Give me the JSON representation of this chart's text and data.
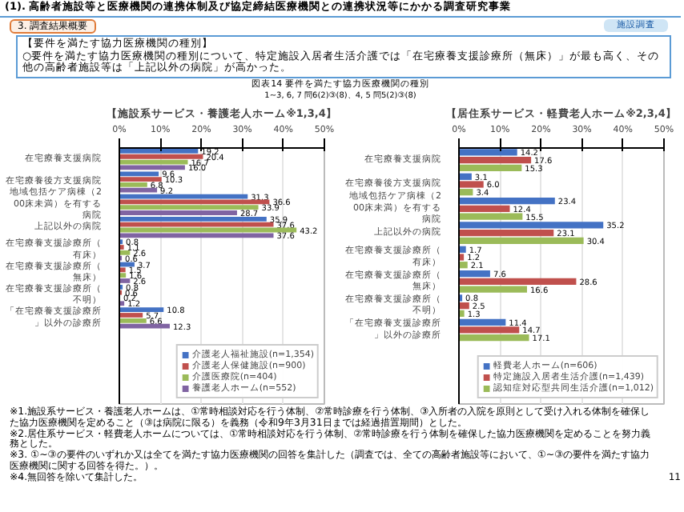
{
  "chart_data": [
    {
      "type": "bar",
      "orientation": "horizontal",
      "title": "【施設系サービス・養護老人ホーム※1,3,4】",
      "annotations": [
        "(1). 高齢者施設等と医療機関の連携体制及び協定締結医療機関との連携状況等にかかる調査研究事業",
        "施設調査",
        "3. 調査結果概要",
        "【要件を満たす協力医療機関の種別】",
        "○要件を満たす協力医療機関の種別について、特定施設入居者生活介護では「在宅療養支援診療所（無床）」が最も高く、その他の高齢者施設等は「上記以外の病院」が高かった。",
        "図表14 要件を満たす協力医療機関の種別",
        "1~3, 6, 7 問6(2)③(8)、4, 5 問5(2)③(8)",
        "※1.施設系サービス・養護老人ホームは、①常時相談対応を行う体制、②常時診療を行う体制、③入所者の入院を原則として受け入れる体制を確保した協力医療機関を定めること（③は病院に限る）を義務（令和9年3月31日までは経過措置期間）とした。",
        "※2.居住系サービス・軽費老人ホームについては、①常時相談対応を行う体制、②常時診療を行う体制を確保した協力医療機関を定めることを努力義務とした。",
        "※3. ①~③の要件のいずれか又は全てを満たす協力医療機関の回答を集計した（調査では、全ての高齢者施設等において、①~③の要件を満たす協力医療機関に関する回答を得た。）。",
        "※4.無回答を除いて集計した。",
        "11"
      ],
      "categories": [
        "在宅療養支援病院",
        "在宅療養後方支援病院",
        "地域包括ケア病棟（200床未満）を有する病院",
        "上記以外の病院",
        "在宅療養支援診療所（有床）",
        "在宅療養支援診療所（無床）",
        "在宅療養支援診療所（不明）",
        "「在宅療養支援診療所」以外の診療所"
      ],
      "series": [
        {
          "name": "介護老人福祉施設(n=1,354)",
          "color": "#4472c4",
          "values": [
            19.2,
            9.6,
            31.3,
            35.9,
            0.8,
            3.7,
            0.8,
            10.8
          ],
          "value_labels": [
            "19.2",
            "9.6",
            "31.3",
            "35.9",
            "0.8",
            "3.7",
            "0.8",
            "10.8"
          ]
        },
        {
          "name": "介護老人保健施設(n=900)",
          "color": "#c0504d",
          "values": [
            20.4,
            10.3,
            36.6,
            37.6,
            1.1,
            1.5,
            0.6,
            5.7
          ],
          "value_labels": [
            "20.4",
            "10.3",
            "36.6",
            "37.6",
            "1.1",
            "1.5",
            "0.6",
            "5.7"
          ]
        },
        {
          "name": "介護医療院(n=404)",
          "color": "#9bbb59",
          "values": [
            16.7,
            6.8,
            33.9,
            43.2,
            2.6,
            1.6,
            0.2,
            6.6
          ],
          "value_labels": [
            "16.7",
            "6.8",
            "33.9",
            "43.2",
            "2.6",
            "1.6",
            "0.2",
            "6.6"
          ]
        },
        {
          "name": "養護老人ホーム(n=552)",
          "color": "#8064a2",
          "values": [
            16.0,
            9.2,
            28.7,
            37.6,
            0.6,
            2.6,
            1.2,
            12.3
          ],
          "value_labels": [
            "16.0",
            "9.2",
            "28.7",
            "37.6",
            "0.6",
            "2.6",
            "1.2",
            "12.3"
          ]
        }
      ],
      "xlim": [
        0,
        50
      ],
      "xticks": [
        {
          "value": 0,
          "label": "0%"
        },
        {
          "value": 10,
          "label": "10%"
        },
        {
          "value": 20,
          "label": "20%"
        },
        {
          "value": 30,
          "label": "30%"
        },
        {
          "value": 40,
          "label": "40%"
        },
        {
          "value": 50,
          "label": "50%"
        }
      ],
      "grid": "x",
      "legend": "bottom right",
      "data_labels": true
    },
    {
      "type": "bar",
      "orientation": "horizontal",
      "title": "【居住系サービス・軽費老人ホーム※2,3,4】",
      "categories": [
        "在宅療養支援病院",
        "在宅療養後方支援病院",
        "地域包括ケア病棟（200床未満）を有する病院",
        "上記以外の病院",
        "在宅療養支援診療所（有床）",
        "在宅療養支援診療所（無床）",
        "在宅療養支援診療所（不明）",
        "「在宅療養支援診療所」以外の診療所"
      ],
      "series": [
        {
          "name": "軽費老人ホーム(n=606)",
          "color": "#4472c4",
          "values": [
            14.2,
            3.1,
            23.4,
            35.2,
            1.7,
            7.6,
            0.8,
            11.4
          ],
          "value_labels": [
            "14.2",
            "3.1",
            "23.4",
            "35.2",
            "1.7",
            "7.6",
            "0.8",
            "11.4"
          ]
        },
        {
          "name": "特定施設入居者生活介護(n=1,439)",
          "color": "#c0504d",
          "values": [
            17.6,
            6.0,
            12.4,
            23.1,
            1.2,
            28.6,
            2.5,
            14.7
          ],
          "value_labels": [
            "17.6",
            "6.0",
            "12.4",
            "23.1",
            "1.2",
            "28.6",
            "2.5",
            "14.7"
          ]
        },
        {
          "name": "認知症対応型共同生活介護(n=1,012)",
          "color": "#9bbb59",
          "values": [
            15.3,
            3.4,
            15.5,
            30.4,
            2.1,
            16.6,
            1.3,
            17.1
          ],
          "value_labels": [
            "15.3",
            "3.4",
            "15.5",
            "30.4",
            "2.1",
            "16.6",
            "1.3",
            "17.1"
          ]
        }
      ],
      "xlim": [
        0,
        50
      ],
      "xticks": [
        {
          "value": 0,
          "label": "0%"
        },
        {
          "value": 10,
          "label": "10%"
        },
        {
          "value": 20,
          "label": "20%"
        },
        {
          "value": 30,
          "label": "30%"
        },
        {
          "value": 40,
          "label": "40%"
        },
        {
          "value": 50,
          "label": "50%"
        }
      ],
      "grid": "x",
      "legend": "bottom right",
      "data_labels": true
    }
  ]
}
